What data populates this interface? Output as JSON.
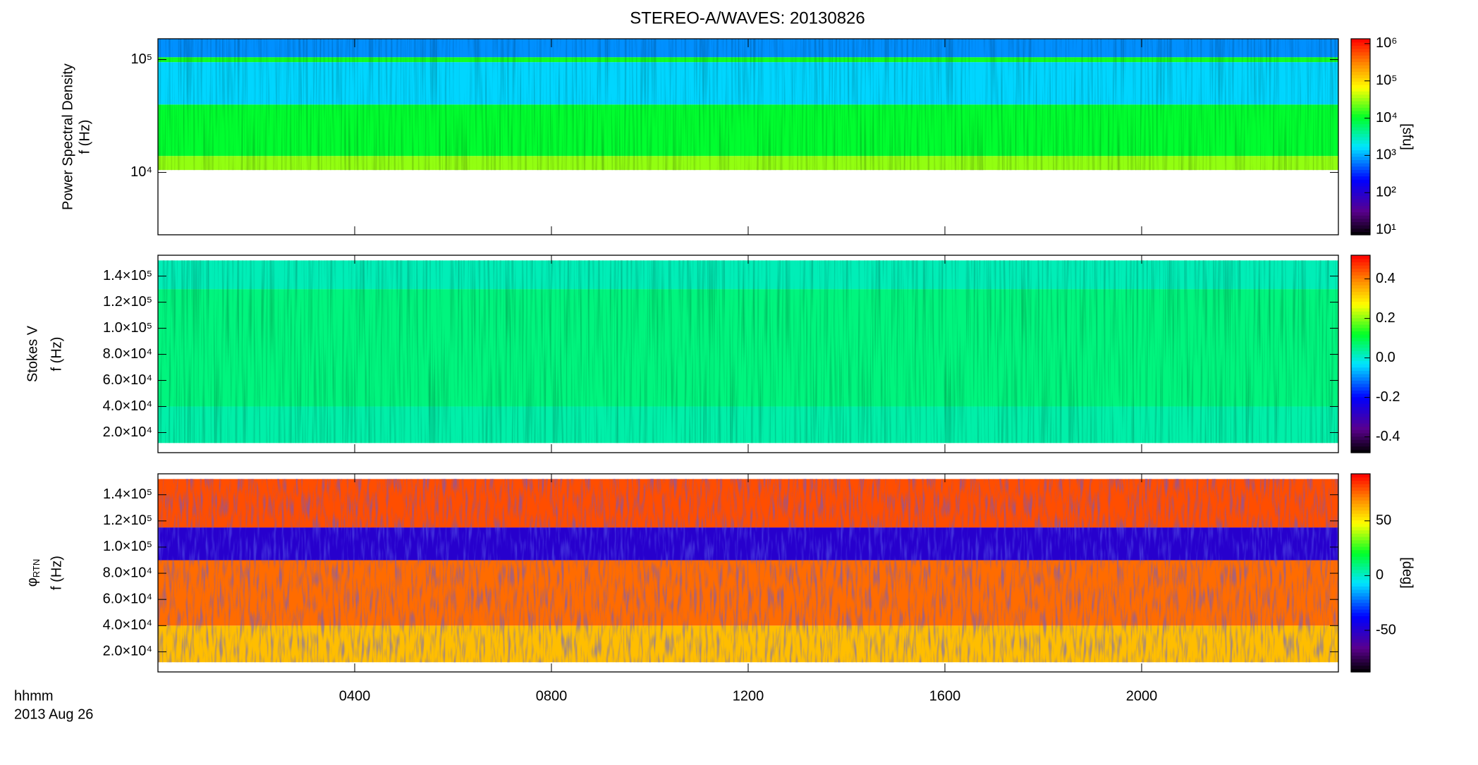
{
  "title": "STEREO-A/WAVES: 20130826",
  "time_axis": {
    "label": "hhmm",
    "date": "2013 Aug 26",
    "xlim": [
      0,
      24
    ],
    "xticks": [
      {
        "value": 4,
        "label": "0400"
      },
      {
        "value": 8,
        "label": "0800"
      },
      {
        "value": 12,
        "label": "1200"
      },
      {
        "value": 16,
        "label": "1600"
      },
      {
        "value": 20,
        "label": "2000"
      }
    ]
  },
  "chart_data": [
    {
      "type": "spectrogram",
      "quantity": "Power Spectral Density",
      "ylabel": "f (Hz)",
      "log": true,
      "ylim": [
        2800,
        153000
      ],
      "yticks": [
        {
          "value": 10000,
          "label": "10⁴"
        },
        {
          "value": 100000,
          "label": "10⁵"
        }
      ],
      "bands": [
        {
          "flim": [
            10500,
            14000
          ],
          "value": 30000
        },
        {
          "flim": [
            14000,
            40000
          ],
          "value": 10000
        },
        {
          "flim": [
            40000,
            95000
          ],
          "value": 1500
        },
        {
          "flim": [
            95000,
            105000
          ],
          "value": 12000
        },
        {
          "flim": [
            105000,
            153000
          ],
          "value": 800
        }
      ],
      "colorbar": {
        "label": "[sfu]",
        "log": true,
        "zlim": [
          7.4,
          1350000
        ],
        "zticks": [
          {
            "value": 10,
            "label": "10¹"
          },
          {
            "value": 100,
            "label": "10²"
          },
          {
            "value": 1000,
            "label": "10³"
          },
          {
            "value": 10000,
            "label": "10⁴"
          },
          {
            "value": 100000,
            "label": "10⁵"
          },
          {
            "value": 1000000,
            "label": "10⁶"
          }
        ]
      }
    },
    {
      "type": "spectrogram",
      "quantity": "Stokes V",
      "ylabel": "f (Hz)",
      "log": false,
      "ylim": [
        4600,
        156000
      ],
      "yticks": [
        {
          "value": 20000,
          "label": "2.0×10⁴"
        },
        {
          "value": 40000,
          "label": "4.0×10⁴"
        },
        {
          "value": 60000,
          "label": "6.0×10⁴"
        },
        {
          "value": 80000,
          "label": "8.0×10⁴"
        },
        {
          "value": 100000,
          "label": "1.0×10⁵"
        },
        {
          "value": 120000,
          "label": "1.2×10⁵"
        },
        {
          "value": 140000,
          "label": "1.4×10⁵"
        }
      ],
      "bands": [
        {
          "flim": [
            12000,
            40000
          ],
          "value": 0.03
        },
        {
          "flim": [
            40000,
            130000
          ],
          "value": 0.06
        },
        {
          "flim": [
            130000,
            152000
          ],
          "value": 0.02
        }
      ],
      "colorbar": {
        "log": false,
        "zlim": [
          -0.48,
          0.52
        ],
        "zticks": [
          -0.4,
          -0.2,
          {
            "value": 0,
            "label": "0.0"
          },
          0.2,
          0.4
        ]
      }
    },
    {
      "type": "spectrogram",
      "quantity": "φ",
      "quantity_subscript": "RTN",
      "ylabel": "f (Hz)",
      "log": false,
      "ylim": [
        4600,
        156000
      ],
      "yticks": [
        {
          "value": 20000,
          "label": "2.0×10⁴"
        },
        {
          "value": 40000,
          "label": "4.0×10⁴"
        },
        {
          "value": 60000,
          "label": "6.0×10⁴"
        },
        {
          "value": 80000,
          "label": "8.0×10⁴"
        },
        {
          "value": 100000,
          "label": "1.0×10⁵"
        },
        {
          "value": 120000,
          "label": "1.2×10⁵"
        },
        {
          "value": 140000,
          "label": "1.4×10⁵"
        }
      ],
      "bands": [
        {
          "flim": [
            12000,
            40000
          ],
          "value": 60
        },
        {
          "flim": [
            40000,
            90000
          ],
          "value": 75
        },
        {
          "flim": [
            90000,
            115000
          ],
          "value": -50
        },
        {
          "flim": [
            115000,
            152000
          ],
          "value": 80
        }
      ],
      "colorbar": {
        "label": "[deg]",
        "log": false,
        "zlim": [
          -88,
          93
        ],
        "zticks": [
          -50,
          0,
          50
        ]
      }
    }
  ]
}
